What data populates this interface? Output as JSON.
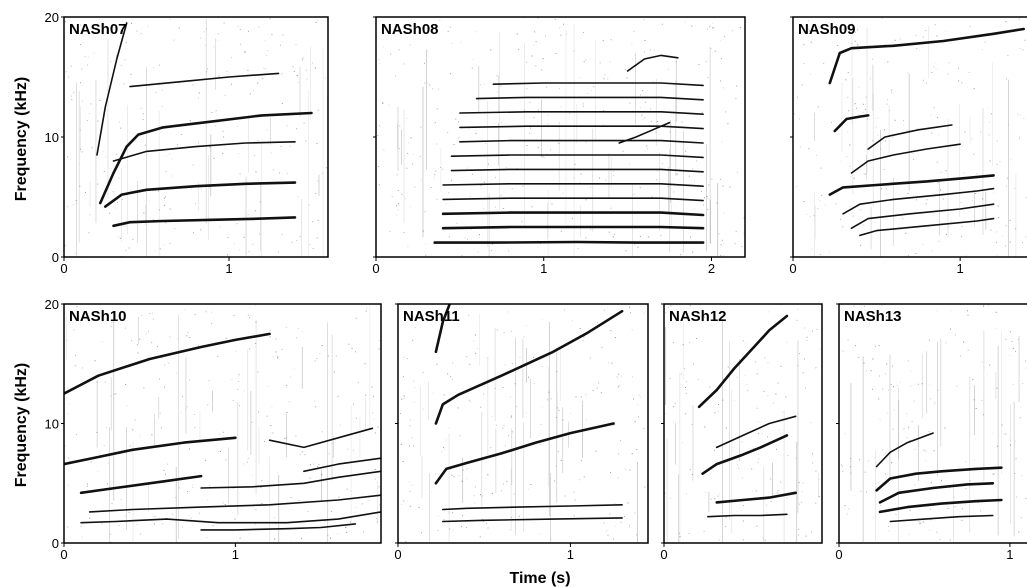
{
  "figure": {
    "y_axis_title": "Frequency (kHz)",
    "x_axis_title": "Time (s)"
  },
  "chart_data": [
    {
      "type": "heatmap",
      "title": "NASh07",
      "xlim": [
        0,
        1.6
      ],
      "ylim": [
        0,
        20
      ],
      "x_ticks": [
        0,
        1
      ],
      "y_ticks": [
        0,
        10,
        20
      ],
      "harmonics": [
        {
          "x": [
            0.22,
            0.3,
            0.38,
            0.45,
            0.6,
            0.9,
            1.2,
            1.5
          ],
          "y": [
            4.5,
            7.0,
            9.2,
            10.2,
            10.8,
            11.3,
            11.8,
            12.0
          ]
        },
        {
          "x": [
            0.25,
            0.35,
            0.5,
            0.8,
            1.1,
            1.4
          ],
          "y": [
            4.2,
            5.2,
            5.6,
            5.9,
            6.1,
            6.2
          ]
        },
        {
          "x": [
            0.3,
            0.4,
            0.6,
            0.9,
            1.2,
            1.4
          ],
          "y": [
            2.6,
            2.9,
            3.0,
            3.1,
            3.2,
            3.3
          ]
        },
        {
          "x": [
            0.3,
            0.5,
            0.8,
            1.1,
            1.4
          ],
          "y": [
            8.0,
            8.8,
            9.2,
            9.5,
            9.6
          ]
        },
        {
          "x": [
            0.4,
            0.7,
            1.0,
            1.3
          ],
          "y": [
            14.2,
            14.6,
            15.0,
            15.3
          ]
        },
        {
          "x": [
            0.2,
            0.25,
            0.32,
            0.38
          ],
          "y": [
            8.5,
            12.5,
            16.5,
            19.5
          ]
        }
      ]
    },
    {
      "type": "heatmap",
      "title": "NASh08",
      "xlim": [
        0,
        2.2
      ],
      "ylim": [
        0,
        20
      ],
      "x_ticks": [
        0,
        1,
        2
      ],
      "y_ticks": [
        0,
        10,
        20
      ],
      "harmonics": [
        {
          "x": [
            0.35,
            0.7,
            1.2,
            1.6,
            1.95
          ],
          "y": [
            1.2,
            1.2,
            1.25,
            1.2,
            1.2
          ]
        },
        {
          "x": [
            0.4,
            0.8,
            1.3,
            1.7,
            1.95
          ],
          "y": [
            2.4,
            2.5,
            2.5,
            2.5,
            2.4
          ]
        },
        {
          "x": [
            0.4,
            0.8,
            1.3,
            1.7,
            1.95
          ],
          "y": [
            3.6,
            3.7,
            3.7,
            3.7,
            3.5
          ]
        },
        {
          "x": [
            0.4,
            0.8,
            1.3,
            1.7,
            1.95
          ],
          "y": [
            4.8,
            4.9,
            4.9,
            4.9,
            4.7
          ]
        },
        {
          "x": [
            0.4,
            0.8,
            1.3,
            1.7,
            1.95
          ],
          "y": [
            6.0,
            6.1,
            6.1,
            6.1,
            5.9
          ]
        },
        {
          "x": [
            0.45,
            0.8,
            1.3,
            1.7,
            1.95
          ],
          "y": [
            7.2,
            7.3,
            7.3,
            7.3,
            7.1
          ]
        },
        {
          "x": [
            0.45,
            0.8,
            1.3,
            1.7,
            1.95
          ],
          "y": [
            8.4,
            8.5,
            8.5,
            8.5,
            8.3
          ]
        },
        {
          "x": [
            0.5,
            0.8,
            1.3,
            1.7,
            1.95
          ],
          "y": [
            9.6,
            9.7,
            9.7,
            9.7,
            9.5
          ]
        },
        {
          "x": [
            0.5,
            0.9,
            1.3,
            1.7,
            1.95
          ],
          "y": [
            10.8,
            10.9,
            10.9,
            10.9,
            10.7
          ]
        },
        {
          "x": [
            0.5,
            0.9,
            1.3,
            1.7,
            1.95
          ],
          "y": [
            12.0,
            12.1,
            12.1,
            12.1,
            11.9
          ]
        },
        {
          "x": [
            0.6,
            0.9,
            1.3,
            1.7,
            1.95
          ],
          "y": [
            13.2,
            13.3,
            13.3,
            13.3,
            13.1
          ]
        },
        {
          "x": [
            0.7,
            1.0,
            1.3,
            1.7,
            1.95
          ],
          "y": [
            14.4,
            14.5,
            14.5,
            14.5,
            14.3
          ]
        },
        {
          "x": [
            1.5,
            1.6,
            1.7,
            1.8
          ],
          "y": [
            15.5,
            16.5,
            16.8,
            16.6
          ]
        },
        {
          "x": [
            1.45,
            1.55,
            1.65,
            1.75
          ],
          "y": [
            9.5,
            10.0,
            10.6,
            11.2
          ]
        }
      ]
    },
    {
      "type": "heatmap",
      "title": "NASh09",
      "xlim": [
        0,
        1.4
      ],
      "ylim": [
        0,
        20
      ],
      "x_ticks": [
        0,
        1
      ],
      "y_ticks": [
        0,
        10,
        20
      ],
      "harmonics": [
        {
          "x": [
            0.22,
            0.28,
            0.35,
            0.6,
            0.9,
            1.2,
            1.38
          ],
          "y": [
            14.5,
            17.0,
            17.4,
            17.6,
            18.0,
            18.6,
            19.0
          ]
        },
        {
          "x": [
            0.25,
            0.32,
            0.4,
            0.45
          ],
          "y": [
            10.5,
            11.5,
            11.7,
            11.8
          ]
        },
        {
          "x": [
            0.22,
            0.3,
            0.5,
            0.8,
            1.05,
            1.2
          ],
          "y": [
            5.2,
            5.8,
            6.0,
            6.3,
            6.6,
            6.8
          ]
        },
        {
          "x": [
            0.3,
            0.4,
            0.6,
            0.9,
            1.1,
            1.2
          ],
          "y": [
            3.6,
            4.4,
            4.8,
            5.2,
            5.5,
            5.7
          ]
        },
        {
          "x": [
            0.35,
            0.45,
            0.7,
            1.0,
            1.2
          ],
          "y": [
            2.4,
            3.2,
            3.6,
            4.0,
            4.4
          ]
        },
        {
          "x": [
            0.4,
            0.5,
            0.8,
            1.1,
            1.2
          ],
          "y": [
            1.8,
            2.2,
            2.6,
            3.0,
            3.2
          ]
        },
        {
          "x": [
            0.35,
            0.45,
            0.6,
            0.8,
            1.0
          ],
          "y": [
            7.0,
            8.0,
            8.5,
            9.0,
            9.4
          ]
        },
        {
          "x": [
            0.45,
            0.55,
            0.75,
            0.95
          ],
          "y": [
            9.0,
            10.0,
            10.6,
            11.0
          ]
        }
      ]
    },
    {
      "type": "heatmap",
      "title": "NASh10",
      "xlim": [
        0,
        1.85
      ],
      "ylim": [
        0,
        20
      ],
      "x_ticks": [
        0,
        1
      ],
      "y_ticks": [
        0,
        10,
        20
      ],
      "harmonics": [
        {
          "x": [
            0.0,
            0.2,
            0.5,
            0.8,
            1.0,
            1.2
          ],
          "y": [
            12.5,
            14.0,
            15.4,
            16.4,
            17.0,
            17.5
          ]
        },
        {
          "x": [
            0.0,
            0.2,
            0.4,
            0.7,
            1.0
          ],
          "y": [
            6.6,
            7.2,
            7.8,
            8.4,
            8.8
          ]
        },
        {
          "x": [
            0.1,
            0.3,
            0.6,
            0.8
          ],
          "y": [
            4.2,
            4.6,
            5.2,
            5.6
          ]
        },
        {
          "x": [
            0.15,
            0.4,
            0.8,
            1.2,
            1.6,
            1.85
          ],
          "y": [
            2.6,
            2.8,
            3.0,
            3.2,
            3.6,
            4.0
          ]
        },
        {
          "x": [
            0.1,
            0.3,
            0.6,
            0.9,
            1.3,
            1.6,
            1.85
          ],
          "y": [
            1.7,
            1.8,
            2.0,
            1.7,
            1.7,
            2.0,
            2.6
          ]
        },
        {
          "x": [
            0.8,
            1.0,
            1.3,
            1.5,
            1.7
          ],
          "y": [
            1.1,
            1.1,
            1.2,
            1.3,
            1.6
          ]
        },
        {
          "x": [
            0.8,
            1.1,
            1.4,
            1.6,
            1.85
          ],
          "y": [
            4.6,
            4.7,
            5.0,
            5.5,
            6.0
          ]
        },
        {
          "x": [
            1.4,
            1.6,
            1.85
          ],
          "y": [
            6.0,
            6.6,
            7.1
          ]
        },
        {
          "x": [
            1.2,
            1.4,
            1.6,
            1.8
          ],
          "y": [
            8.6,
            8.0,
            8.8,
            9.6
          ]
        }
      ]
    },
    {
      "type": "heatmap",
      "title": "NASh11",
      "xlim": [
        0,
        1.45
      ],
      "ylim": [
        0,
        20
      ],
      "x_ticks": [
        0,
        1
      ],
      "y_ticks": [
        0,
        10,
        20
      ],
      "harmonics": [
        {
          "x": [
            0.22,
            0.28,
            0.4,
            0.6,
            0.8,
            1.0,
            1.25
          ],
          "y": [
            5.0,
            6.2,
            6.7,
            7.5,
            8.4,
            9.2,
            10.0
          ]
        },
        {
          "x": [
            0.22,
            0.26,
            0.35,
            0.6,
            0.9,
            1.1,
            1.3
          ],
          "y": [
            10.0,
            11.6,
            12.4,
            14.0,
            16.0,
            17.6,
            19.4
          ]
        },
        {
          "x": [
            0.22,
            0.26,
            0.3
          ],
          "y": [
            16.0,
            18.5,
            20.0
          ]
        },
        {
          "x": [
            0.26,
            0.4,
            0.7,
            1.0,
            1.3
          ],
          "y": [
            2.8,
            2.9,
            3.0,
            3.1,
            3.2
          ]
        },
        {
          "x": [
            0.26,
            0.5,
            0.9,
            1.3
          ],
          "y": [
            1.8,
            1.9,
            2.0,
            2.1
          ]
        }
      ]
    },
    {
      "type": "heatmap",
      "title": "NASh12",
      "xlim": [
        0,
        0.9
      ],
      "ylim": [
        0,
        20
      ],
      "x_ticks": [
        0
      ],
      "y_ticks": [
        0,
        10,
        20
      ],
      "harmonics": [
        {
          "x": [
            0.2,
            0.3,
            0.4,
            0.5,
            0.6,
            0.7
          ],
          "y": [
            11.4,
            12.8,
            14.6,
            16.2,
            17.8,
            19.0
          ]
        },
        {
          "x": [
            0.22,
            0.3,
            0.45,
            0.55,
            0.7
          ],
          "y": [
            5.8,
            6.6,
            7.4,
            8.0,
            9.0
          ]
        },
        {
          "x": [
            0.3,
            0.45,
            0.6,
            0.75
          ],
          "y": [
            3.4,
            3.6,
            3.8,
            4.2
          ]
        },
        {
          "x": [
            0.25,
            0.4,
            0.55,
            0.7
          ],
          "y": [
            2.2,
            2.3,
            2.3,
            2.4
          ]
        },
        {
          "x": [
            0.3,
            0.45,
            0.6,
            0.75
          ],
          "y": [
            8.0,
            9.0,
            10.0,
            10.6
          ]
        }
      ]
    },
    {
      "type": "heatmap",
      "title": "NASh13",
      "xlim": [
        0,
        1.1
      ],
      "ylim": [
        0,
        20
      ],
      "x_ticks": [
        0,
        1
      ],
      "y_ticks": [
        0,
        10,
        20
      ],
      "harmonics": [
        {
          "x": [
            0.22,
            0.3,
            0.45,
            0.6,
            0.8,
            0.95
          ],
          "y": [
            4.4,
            5.4,
            5.8,
            6.0,
            6.2,
            6.3
          ]
        },
        {
          "x": [
            0.24,
            0.35,
            0.55,
            0.75,
            0.9
          ],
          "y": [
            3.4,
            4.2,
            4.6,
            4.9,
            5.0
          ]
        },
        {
          "x": [
            0.24,
            0.4,
            0.6,
            0.8,
            0.95
          ],
          "y": [
            2.6,
            3.0,
            3.3,
            3.5,
            3.6
          ]
        },
        {
          "x": [
            0.22,
            0.3,
            0.4,
            0.55
          ],
          "y": [
            6.4,
            7.6,
            8.4,
            9.2
          ]
        },
        {
          "x": [
            0.3,
            0.5,
            0.7,
            0.9
          ],
          "y": [
            1.8,
            2.0,
            2.2,
            2.3
          ]
        }
      ]
    }
  ]
}
